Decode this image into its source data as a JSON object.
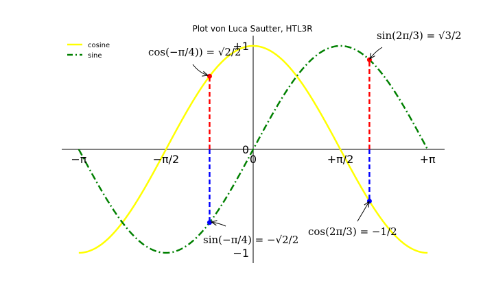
{
  "chart_data": {
    "type": "line",
    "title": "Plot von Luca Sautter, HTL3R",
    "xlim": [
      -3.14159,
      3.14159
    ],
    "ylim": [
      -1.1,
      1.1
    ],
    "series": [
      {
        "name": "cosine",
        "function": "cos",
        "color": "#ffff00",
        "style": "solid"
      },
      {
        "name": "sine",
        "function": "sin",
        "color": "#008000",
        "style": "dashdot"
      }
    ],
    "x_ticks": [
      {
        "value": -3.14159,
        "label": "−π"
      },
      {
        "value": -1.5708,
        "label": "−π/2"
      },
      {
        "value": 0,
        "label": "0"
      },
      {
        "value": 1.5708,
        "label": "+π/2"
      },
      {
        "value": 3.14159,
        "label": "+π"
      }
    ],
    "y_ticks": [
      {
        "value": -1,
        "label": "−1"
      },
      {
        "value": 0,
        "label": "0"
      },
      {
        "value": 1,
        "label": "+1"
      }
    ],
    "legend": {
      "position": "upper-left",
      "entries": [
        "cosine",
        "sine"
      ]
    },
    "markers": [
      {
        "x": -0.7854,
        "y": 0.7071,
        "color": "#ff0000"
      },
      {
        "x": -0.7854,
        "y": -0.7071,
        "color": "#0000ff"
      },
      {
        "x": 2.0944,
        "y": 0.866,
        "color": "#ff0000"
      },
      {
        "x": 2.0944,
        "y": -0.5,
        "color": "#0000ff"
      }
    ],
    "guide_lines": [
      {
        "x": -0.7854,
        "y0": 0,
        "y1": 0.7071,
        "color": "#ff0000"
      },
      {
        "x": -0.7854,
        "y0": 0,
        "y1": -0.7071,
        "color": "#0000ff"
      },
      {
        "x": 2.0944,
        "y0": 0,
        "y1": 0.866,
        "color": "#ff0000"
      },
      {
        "x": 2.0944,
        "y0": 0,
        "y1": -0.5,
        "color": "#0000ff"
      }
    ],
    "annotations": [
      {
        "text": "cos(−π/4)) = √2/2",
        "point_x": -0.7854,
        "point_y": 0.7071
      },
      {
        "text": "sin(−π/4) = −√2/2",
        "point_x": -0.7854,
        "point_y": -0.7071
      },
      {
        "text": "sin(2π/3) = √3/2",
        "point_x": 2.0944,
        "point_y": 0.866
      },
      {
        "text": "cos(2π/3) = −1/2",
        "point_x": 2.0944,
        "point_y": -0.5
      }
    ]
  }
}
